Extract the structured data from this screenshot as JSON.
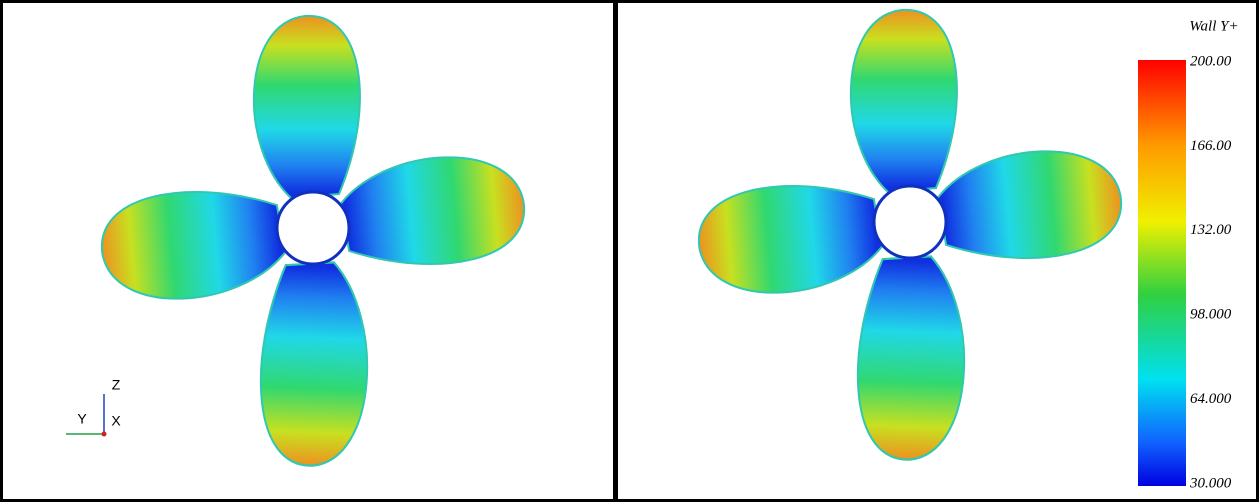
{
  "colorbar": {
    "title": "Wall Y+",
    "labels": [
      "200.00",
      "166.00",
      "132.00",
      "98.000",
      "64.000",
      "30.000"
    ]
  },
  "triad": {
    "labels": [
      "Z",
      "Y",
      "X"
    ]
  }
}
